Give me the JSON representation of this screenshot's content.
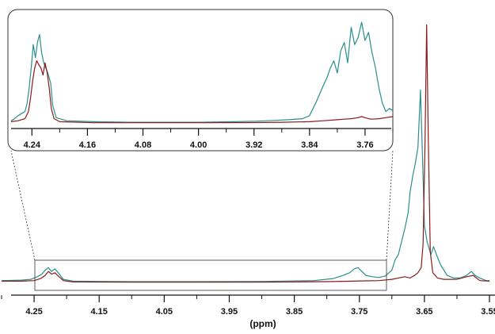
{
  "chart_data": [
    {
      "type": "line",
      "panel": "main",
      "xlabel": "(ppm)",
      "xlim": [
        4.3,
        3.55
      ],
      "x_reversed": true,
      "xticks": [
        "4.25",
        "4.15",
        "4.05",
        "3.95",
        "3.85",
        "3.75",
        "3.65",
        "3.55"
      ],
      "series": [
        {
          "color": "#2a8f8c",
          "points": [
            [
              4.3,
              0.01
            ],
            [
              4.27,
              0.012
            ],
            [
              4.255,
              0.015
            ],
            [
              4.245,
              0.025
            ],
            [
              4.238,
              0.035
            ],
            [
              4.233,
              0.05
            ],
            [
              4.228,
              0.06
            ],
            [
              4.223,
              0.045
            ],
            [
              4.218,
              0.055
            ],
            [
              4.213,
              0.04
            ],
            [
              4.205,
              0.015
            ],
            [
              4.19,
              0.008
            ],
            [
              4.1,
              0.006
            ],
            [
              4.0,
              0.006
            ],
            [
              3.9,
              0.007
            ],
            [
              3.82,
              0.01
            ],
            [
              3.79,
              0.018
            ],
            [
              3.775,
              0.03
            ],
            [
              3.765,
              0.04
            ],
            [
              3.758,
              0.055
            ],
            [
              3.752,
              0.06
            ],
            [
              3.746,
              0.045
            ],
            [
              3.74,
              0.03
            ],
            [
              3.73,
              0.025
            ],
            [
              3.72,
              0.022
            ],
            [
              3.71,
              0.028
            ],
            [
              3.7,
              0.05
            ],
            [
              3.695,
              0.09
            ],
            [
              3.69,
              0.11
            ],
            [
              3.685,
              0.16
            ],
            [
              3.68,
              0.21
            ],
            [
              3.675,
              0.27
            ],
            [
              3.672,
              0.35
            ],
            [
              3.668,
              0.41
            ],
            [
              3.664,
              0.46
            ],
            [
              3.66,
              0.52
            ],
            [
              3.656,
              0.74
            ],
            [
              3.653,
              0.49
            ],
            [
              3.65,
              0.22
            ],
            [
              3.646,
              0.16
            ],
            [
              3.64,
              0.11
            ],
            [
              3.636,
              0.14
            ],
            [
              3.63,
              0.1
            ],
            [
              3.625,
              0.07
            ],
            [
              3.615,
              0.03
            ],
            [
              3.605,
              0.02
            ],
            [
              3.595,
              0.02
            ],
            [
              3.585,
              0.03
            ],
            [
              3.578,
              0.045
            ],
            [
              3.572,
              0.03
            ],
            [
              3.565,
              0.02
            ],
            [
              3.555,
              0.01
            ],
            [
              3.55,
              0.01
            ]
          ]
        },
        {
          "color": "#8b1a1a",
          "points": [
            [
              4.3,
              0.008
            ],
            [
              4.27,
              0.008
            ],
            [
              4.25,
              0.01
            ],
            [
              4.24,
              0.018
            ],
            [
              4.233,
              0.03
            ],
            [
              4.228,
              0.045
            ],
            [
              4.223,
              0.035
            ],
            [
              4.218,
              0.04
            ],
            [
              4.213,
              0.028
            ],
            [
              4.205,
              0.01
            ],
            [
              4.19,
              0.005
            ],
            [
              4.1,
              0.004
            ],
            [
              4.0,
              0.004
            ],
            [
              3.9,
              0.004
            ],
            [
              3.8,
              0.006
            ],
            [
              3.76,
              0.008
            ],
            [
              3.74,
              0.009
            ],
            [
              3.72,
              0.01
            ],
            [
              3.7,
              0.015
            ],
            [
              3.69,
              0.02
            ],
            [
              3.68,
              0.025
            ],
            [
              3.672,
              0.02
            ],
            [
              3.665,
              0.03
            ],
            [
              3.66,
              0.04
            ],
            [
              3.655,
              0.06
            ],
            [
              3.652,
              0.15
            ],
            [
              3.649,
              0.55
            ],
            [
              3.6465,
              0.99
            ],
            [
              3.644,
              0.55
            ],
            [
              3.641,
              0.12
            ],
            [
              3.637,
              0.04
            ],
            [
              3.63,
              0.02
            ],
            [
              3.62,
              0.015
            ],
            [
              3.6,
              0.015
            ],
            [
              3.585,
              0.025
            ],
            [
              3.575,
              0.03
            ],
            [
              3.565,
              0.01
            ],
            [
              3.55,
              0.008
            ]
          ]
        }
      ]
    },
    {
      "type": "line",
      "panel": "inset",
      "xlabel": "",
      "xlim": [
        4.27,
        3.72
      ],
      "x_reversed": true,
      "xticks": [
        "4.24",
        "4.16",
        "4.08",
        "4.00",
        "3.92",
        "3.84",
        "3.76"
      ],
      "series": [
        {
          "color": "#2a8f8c",
          "points": [
            [
              4.27,
              0.03
            ],
            [
              4.265,
              0.05
            ],
            [
              4.26,
              0.08
            ],
            [
              4.255,
              0.1
            ],
            [
              4.25,
              0.12
            ],
            [
              4.247,
              0.2
            ],
            [
              4.244,
              0.35
            ],
            [
              4.241,
              0.55
            ],
            [
              4.238,
              0.78
            ],
            [
              4.235,
              0.65
            ],
            [
              4.232,
              0.8
            ],
            [
              4.229,
              0.88
            ],
            [
              4.226,
              0.7
            ],
            [
              4.223,
              0.6
            ],
            [
              4.22,
              0.55
            ],
            [
              4.217,
              0.5
            ],
            [
              4.213,
              0.4
            ],
            [
              4.21,
              0.18
            ],
            [
              4.205,
              0.06
            ],
            [
              4.19,
              0.03
            ],
            [
              4.15,
              0.02
            ],
            [
              4.1,
              0.015
            ],
            [
              4.05,
              0.015
            ],
            [
              4.0,
              0.015
            ],
            [
              3.95,
              0.02
            ],
            [
              3.92,
              0.025
            ],
            [
              3.9,
              0.03
            ],
            [
              3.87,
              0.04
            ],
            [
              3.85,
              0.05
            ],
            [
              3.84,
              0.08
            ],
            [
              3.835,
              0.15
            ],
            [
              3.83,
              0.22
            ],
            [
              3.825,
              0.3
            ],
            [
              3.82,
              0.38
            ],
            [
              3.815,
              0.45
            ],
            [
              3.81,
              0.55
            ],
            [
              3.805,
              0.62
            ],
            [
              3.8,
              0.5
            ],
            [
              3.795,
              0.72
            ],
            [
              3.79,
              0.8
            ],
            [
              3.785,
              0.6
            ],
            [
              3.78,
              0.95
            ],
            [
              3.775,
              0.78
            ],
            [
              3.77,
              0.85
            ],
            [
              3.765,
              1.0
            ],
            [
              3.76,
              0.82
            ],
            [
              3.755,
              0.9
            ],
            [
              3.75,
              0.7
            ],
            [
              3.745,
              0.55
            ],
            [
              3.74,
              0.35
            ],
            [
              3.735,
              0.2
            ],
            [
              3.73,
              0.12
            ],
            [
              3.725,
              0.15
            ],
            [
              3.72,
              0.13
            ]
          ]
        },
        {
          "color": "#8b1a1a",
          "points": [
            [
              4.27,
              0.02
            ],
            [
              4.26,
              0.03
            ],
            [
              4.25,
              0.05
            ],
            [
              4.245,
              0.12
            ],
            [
              4.242,
              0.25
            ],
            [
              4.239,
              0.42
            ],
            [
              4.236,
              0.55
            ],
            [
              4.233,
              0.62
            ],
            [
              4.23,
              0.58
            ],
            [
              4.227,
              0.55
            ],
            [
              4.224,
              0.48
            ],
            [
              4.221,
              0.6
            ],
            [
              4.218,
              0.5
            ],
            [
              4.215,
              0.35
            ],
            [
              4.212,
              0.15
            ],
            [
              4.208,
              0.05
            ],
            [
              4.2,
              0.02
            ],
            [
              4.15,
              0.01
            ],
            [
              4.1,
              0.01
            ],
            [
              4.0,
              0.01
            ],
            [
              3.92,
              0.012
            ],
            [
              3.88,
              0.015
            ],
            [
              3.84,
              0.02
            ],
            [
              3.82,
              0.03
            ],
            [
              3.8,
              0.04
            ],
            [
              3.79,
              0.045
            ],
            [
              3.78,
              0.05
            ],
            [
              3.77,
              0.06
            ],
            [
              3.765,
              0.07
            ],
            [
              3.76,
              0.06
            ],
            [
              3.755,
              0.05
            ],
            [
              3.75,
              0.045
            ],
            [
              3.74,
              0.05
            ],
            [
              3.73,
              0.06
            ],
            [
              3.72,
              0.07
            ]
          ]
        }
      ]
    }
  ]
}
